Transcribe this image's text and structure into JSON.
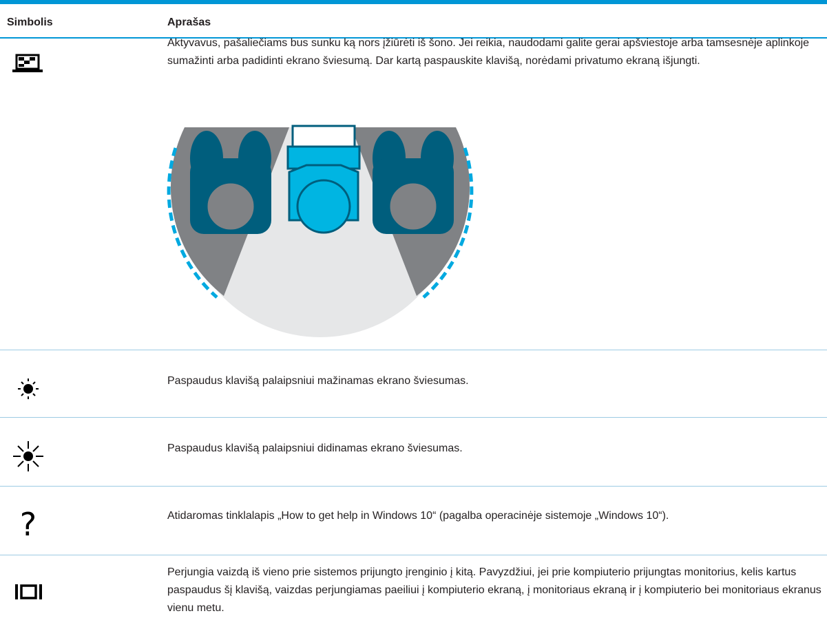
{
  "table": {
    "columns": [
      "Simbolis",
      "Aprašas"
    ],
    "rows": [
      {
        "description": "Aktyvavus, pašaliečiams bus sunku ką nors įžiūrėti iš šono. Jei reikia, naudodami galite gerai apšviestoje arba tamsesnėje aplinkoje sumažinti arba padidinti ekrano šviesumą. Dar kartą paspauskite klavišą, norėdami privatumo ekraną išjungti."
      },
      {
        "description": "Paspaudus klavišą palaipsniui mažinamas ekrano šviesumas."
      },
      {
        "description": "Paspaudus klavišą palaipsniui didinamas ekrano šviesumas."
      },
      {
        "description": "Atidaromas tinklalapis „How to get help in Windows 10“ (pagalba operacinėje sistemoje „Windows 10“)."
      },
      {
        "description": "Perjungia vaizdą iš vieno prie sistemos prijungto įrenginio į kitą. Pavyzdžiui, jei prie kompiuterio prijungtas monitorius, kelis kartus paspaudus šį klavišą, vaizdas perjungiamas paeiliui į kompiuterio ekraną, į monitoriaus ekraną ir į kompiuterio bei monitoriaus ekranus vienu metu."
      }
    ]
  }
}
